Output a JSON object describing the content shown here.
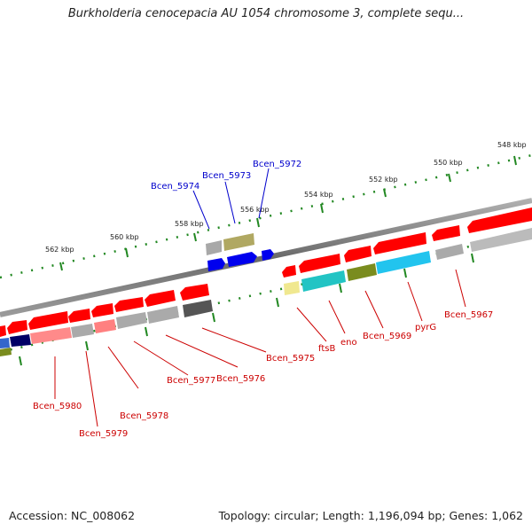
{
  "title": "Burkholderia cenocepacia AU 1054 chromosome 3, complete sequ...",
  "footer": {
    "accession": "Accession: NC_008062",
    "summary": "Topology: circular; Length: 1,196,094 bp; Genes: 1,062"
  },
  "colors": {
    "backbone": "#888888",
    "forward_gene": "#ff0000",
    "reverse_gene": "#ff0000",
    "label_forward": "#0000cc",
    "label_reverse": "#cc0000",
    "tick": "#228822"
  },
  "ruler_labels": [
    "548 kbp",
    "550 kbp",
    "552 kbp",
    "554 kbp",
    "556 kbp",
    "558 kbp",
    "560 kbp",
    "562 kbp"
  ],
  "gene_labels_top": [
    "Bcen_5972",
    "Bcen_5973",
    "Bcen_5974"
  ],
  "gene_labels_bottom": [
    "Bcen_5967",
    "pyrG",
    "Bcen_5969",
    "eno",
    "ftsB",
    "Bcen_5975",
    "Bcen_5976",
    "Bcen_5977",
    "Bcen_5978",
    "Bcen_5979",
    "Bcen_5980"
  ]
}
